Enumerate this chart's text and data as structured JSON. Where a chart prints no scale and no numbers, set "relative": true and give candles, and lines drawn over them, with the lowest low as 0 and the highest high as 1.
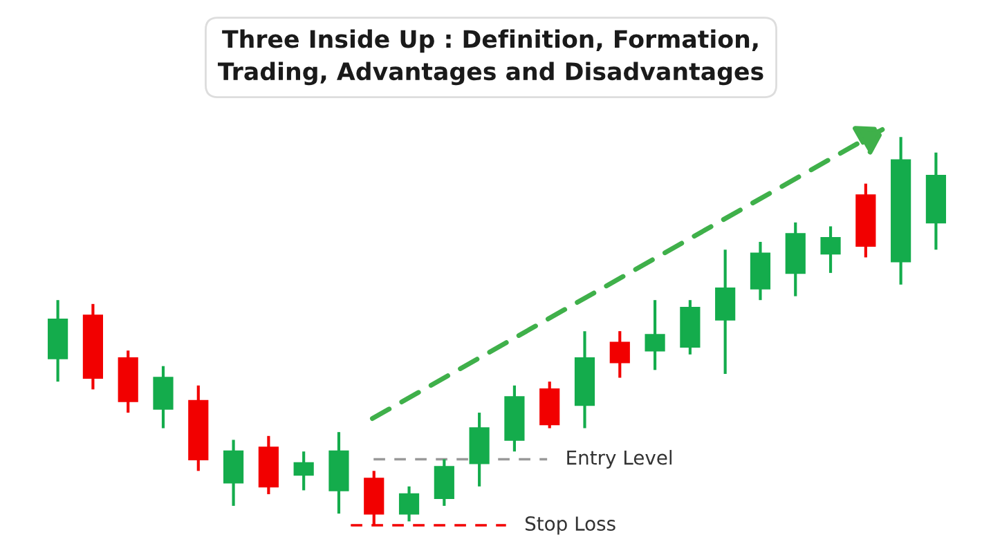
{
  "chart_data": {
    "type": "candlestick",
    "title": "Three Inside Up : Definition, Formation,\nTrading, Advantages and Disadvantages",
    "relative": true,
    "categories": [
      null,
      null,
      null,
      null,
      null,
      null,
      null,
      null,
      null,
      null,
      null,
      null,
      null,
      null,
      null,
      null,
      null,
      null,
      null,
      null,
      null,
      null,
      null,
      null,
      null,
      null
    ],
    "ohlc": [
      [
        0.43,
        0.58,
        0.37,
        0.53
      ],
      [
        0.54,
        0.57,
        0.35,
        0.38
      ],
      [
        0.43,
        0.45,
        0.29,
        0.32
      ],
      [
        0.3,
        0.41,
        0.25,
        0.38
      ],
      [
        0.32,
        0.36,
        0.14,
        0.17
      ],
      [
        0.11,
        0.22,
        0.05,
        0.19
      ],
      [
        0.2,
        0.23,
        0.08,
        0.1
      ],
      [
        0.13,
        0.19,
        0.09,
        0.16
      ],
      [
        0.09,
        0.24,
        0.03,
        0.19
      ],
      [
        0.12,
        0.14,
        0.0,
        0.03
      ],
      [
        0.03,
        0.1,
        0.01,
        0.08
      ],
      [
        0.07,
        0.17,
        0.05,
        0.15
      ],
      [
        0.16,
        0.29,
        0.1,
        0.25
      ],
      [
        0.22,
        0.36,
        0.19,
        0.33
      ],
      [
        0.35,
        0.37,
        0.25,
        0.26
      ],
      [
        0.31,
        0.5,
        0.25,
        0.43
      ],
      [
        0.47,
        0.5,
        0.38,
        0.42
      ],
      [
        0.45,
        0.58,
        0.4,
        0.49
      ],
      [
        0.46,
        0.58,
        0.44,
        0.56
      ],
      [
        0.53,
        0.71,
        0.39,
        0.61
      ],
      [
        0.61,
        0.73,
        0.58,
        0.7
      ],
      [
        0.65,
        0.78,
        0.59,
        0.75
      ],
      [
        0.7,
        0.77,
        0.65,
        0.74
      ],
      [
        0.85,
        0.88,
        0.69,
        0.72
      ],
      [
        0.68,
        1.0,
        0.62,
        0.94
      ],
      [
        0.78,
        0.96,
        0.71,
        0.9
      ]
    ],
    "colors": [
      "#14ac4c",
      "#f20000",
      "#f20000",
      "#14ac4c",
      "#f20000",
      "#14ac4c",
      "#f20000",
      "#14ac4c",
      "#14ac4c",
      "#f20000",
      "#14ac4c",
      "#14ac4c",
      "#14ac4c",
      "#14ac4c",
      "#f20000",
      "#14ac4c",
      "#f20000",
      "#14ac4c",
      "#14ac4c",
      "#14ac4c",
      "#14ac4c",
      "#14ac4c",
      "#14ac4c",
      "#f20000",
      "#14ac4c",
      "#14ac4c"
    ],
    "ref_lines": [
      {
        "axis": "y",
        "value": 0.17,
        "label": "Entry Level",
        "color": "#999999",
        "line_style": "dashed"
      },
      {
        "axis": "y",
        "value": 0.0,
        "label": "Stop Loss",
        "color": "#f20000",
        "line_style": "dashed"
      }
    ]
  }
}
